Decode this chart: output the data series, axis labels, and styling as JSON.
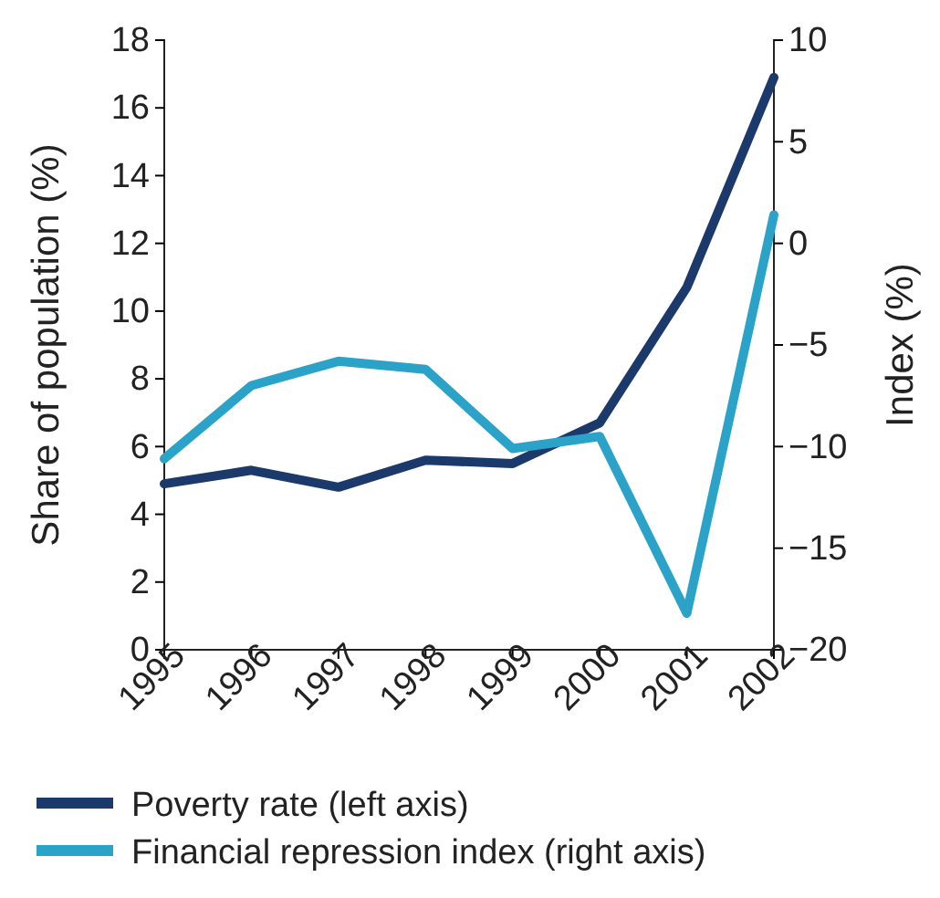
{
  "chart_data": {
    "type": "line",
    "ylabel": "Share of population (%)",
    "y2label": "Index (%)",
    "categories": [
      "1995",
      "1996",
      "1997",
      "1998",
      "1999",
      "2000",
      "2001",
      "2002"
    ],
    "series": [
      {
        "name": "Poverty rate (left axis)",
        "color": "#1b3a6b",
        "values": [
          4.9,
          5.3,
          4.8,
          5.6,
          5.5,
          6.7,
          10.7,
          16.9
        ]
      },
      {
        "name": "Financial repression index (right axis)",
        "color": "#2ba3c9",
        "axis": "y2",
        "values": [
          -10.6,
          -7.0,
          -5.8,
          -6.2,
          -10.1,
          -9.5,
          -18.2,
          1.4
        ]
      }
    ],
    "ylim": [
      0,
      18
    ],
    "yticks": [
      0,
      2,
      4,
      6,
      8,
      10,
      12,
      14,
      16,
      18
    ],
    "y2lim": [
      -20,
      10
    ],
    "y2ticks": [
      {
        "value": -20,
        "label": "−20"
      },
      {
        "value": -15,
        "label": "−15"
      },
      {
        "value": -10,
        "label": "−10"
      },
      {
        "value": -5,
        "label": "−5"
      },
      0,
      5,
      10
    ],
    "grid": false,
    "legend": "bottom",
    "marker": "none",
    "line_style": "solid"
  }
}
